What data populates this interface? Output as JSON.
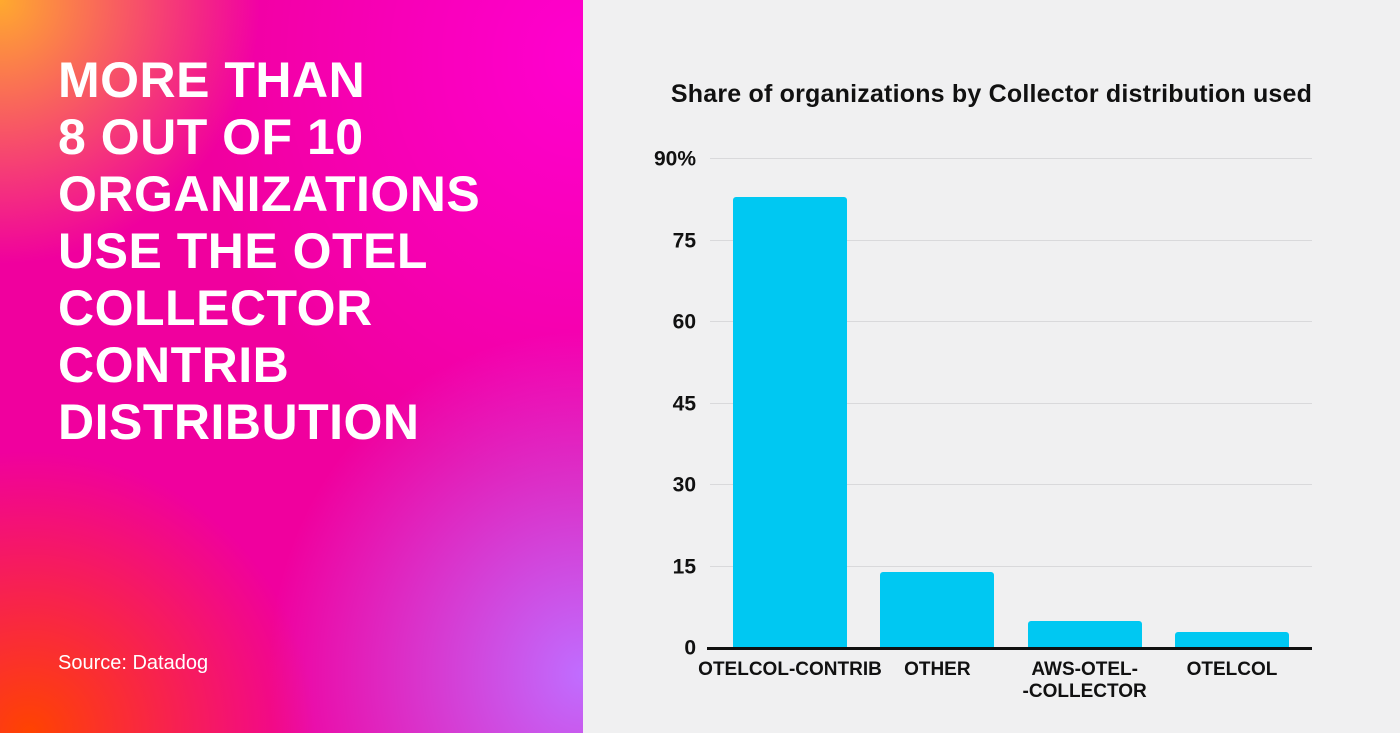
{
  "left_panel": {
    "headline": "MORE THAN\n8 OUT OF 10\nORGANIZATIONS\nUSE THE OTEL\nCOLLECTOR\nCONTRIB\nDISTRIBUTION",
    "source": "Source: Datadog"
  },
  "chart_data": {
    "type": "bar",
    "title": "Share of organizations by Collector distribution used",
    "categories": [
      "OTELCOL-CONTRIB",
      "OTHER",
      "AWS-OTEL-\n-COLLECTOR",
      "OTELCOL"
    ],
    "values": [
      83,
      14,
      5,
      3
    ],
    "value_unit": "%",
    "xlabel": "",
    "ylabel": "",
    "ylim": [
      0,
      90
    ],
    "yticks": [
      0,
      15,
      30,
      45,
      60,
      75,
      90
    ],
    "ytick_labels": [
      "0",
      "15",
      "30",
      "45",
      "60",
      "75",
      "90%"
    ],
    "grid": true,
    "legend": false,
    "bar_color": "#00c8f2"
  },
  "colors": {
    "bar": "#00c8f2",
    "chart_background": "#f0f0f1",
    "gridline": "#d9d9db",
    "axis_line": "#101010",
    "headline_text": "#ffffff"
  }
}
